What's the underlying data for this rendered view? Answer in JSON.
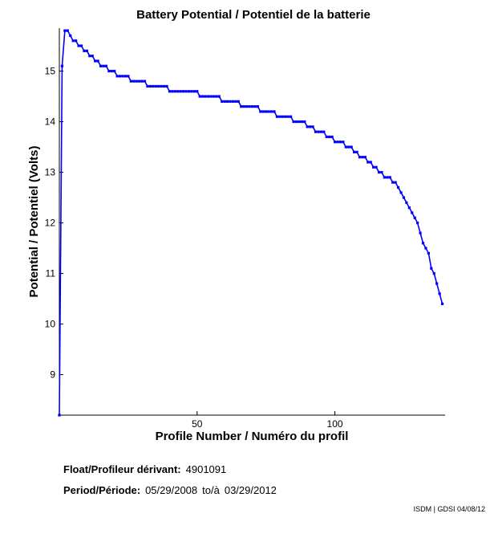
{
  "chart_data": {
    "type": "line",
    "title": "Battery Potential / Potentiel de la batterie",
    "xlabel": "Profile Number / Numéro du profil",
    "ylabel": "Potential / Potentiel (Volts)",
    "xlim": [
      0,
      140
    ],
    "ylim": [
      8.2,
      15.85
    ],
    "x_ticks": [
      50,
      100
    ],
    "y_ticks": [
      9,
      10,
      11,
      12,
      13,
      14,
      15
    ],
    "grid": false,
    "series_color": "#0000ff",
    "series": [
      {
        "x": [
          0,
          1,
          2,
          3,
          4,
          5,
          6,
          7,
          8,
          9,
          10,
          11,
          12,
          13,
          14,
          15,
          16,
          17,
          18,
          19,
          20,
          21,
          22,
          23,
          24,
          25,
          26,
          27,
          28,
          29,
          30,
          31,
          32,
          33,
          34,
          35,
          36,
          37,
          38,
          39,
          40,
          41,
          42,
          43,
          44,
          45,
          46,
          47,
          48,
          49,
          50,
          51,
          52,
          53,
          54,
          55,
          56,
          57,
          58,
          59,
          60,
          61,
          62,
          63,
          64,
          65,
          66,
          67,
          68,
          69,
          70,
          71,
          72,
          73,
          74,
          75,
          76,
          77,
          78,
          79,
          80,
          81,
          82,
          83,
          84,
          85,
          86,
          87,
          88,
          89,
          90,
          91,
          92,
          93,
          94,
          95,
          96,
          97,
          98,
          99,
          100,
          101,
          102,
          103,
          104,
          105,
          106,
          107,
          108,
          109,
          110,
          111,
          112,
          113,
          114,
          115,
          116,
          117,
          118,
          119,
          120,
          121,
          122,
          123,
          124,
          125,
          126,
          127,
          128,
          129,
          130,
          131,
          132,
          133,
          134,
          135,
          136,
          137,
          138,
          139
        ],
        "y": [
          8.2,
          15.1,
          15.8,
          15.8,
          15.7,
          15.6,
          15.6,
          15.5,
          15.5,
          15.4,
          15.4,
          15.3,
          15.3,
          15.2,
          15.2,
          15.1,
          15.1,
          15.1,
          15.0,
          15.0,
          15.0,
          14.9,
          14.9,
          14.9,
          14.9,
          14.9,
          14.8,
          14.8,
          14.8,
          14.8,
          14.8,
          14.8,
          14.7,
          14.7,
          14.7,
          14.7,
          14.7,
          14.7,
          14.7,
          14.7,
          14.6,
          14.6,
          14.6,
          14.6,
          14.6,
          14.6,
          14.6,
          14.6,
          14.6,
          14.6,
          14.6,
          14.5,
          14.5,
          14.5,
          14.5,
          14.5,
          14.5,
          14.5,
          14.5,
          14.4,
          14.4,
          14.4,
          14.4,
          14.4,
          14.4,
          14.4,
          14.3,
          14.3,
          14.3,
          14.3,
          14.3,
          14.3,
          14.3,
          14.2,
          14.2,
          14.2,
          14.2,
          14.2,
          14.2,
          14.1,
          14.1,
          14.1,
          14.1,
          14.1,
          14.1,
          14.0,
          14.0,
          14.0,
          14.0,
          14.0,
          13.9,
          13.9,
          13.9,
          13.8,
          13.8,
          13.8,
          13.8,
          13.7,
          13.7,
          13.7,
          13.6,
          13.6,
          13.6,
          13.6,
          13.5,
          13.5,
          13.5,
          13.4,
          13.4,
          13.3,
          13.3,
          13.3,
          13.2,
          13.2,
          13.1,
          13.1,
          13.0,
          13.0,
          12.9,
          12.9,
          12.9,
          12.8,
          12.8,
          12.7,
          12.6,
          12.5,
          12.4,
          12.3,
          12.2,
          12.1,
          12.0,
          11.8,
          11.6,
          11.5,
          11.4,
          11.1,
          11.0,
          10.8,
          10.6,
          10.4
        ]
      }
    ]
  },
  "footer": {
    "float_label": "Float/Profileur dérivant:",
    "float_value": "4901091",
    "period_label": "Period/Période:",
    "period_start": "05/29/2008",
    "period_sep": "to/à",
    "period_end": "03/29/2012"
  },
  "credit": "ISDM | GDSI 04/08/12"
}
